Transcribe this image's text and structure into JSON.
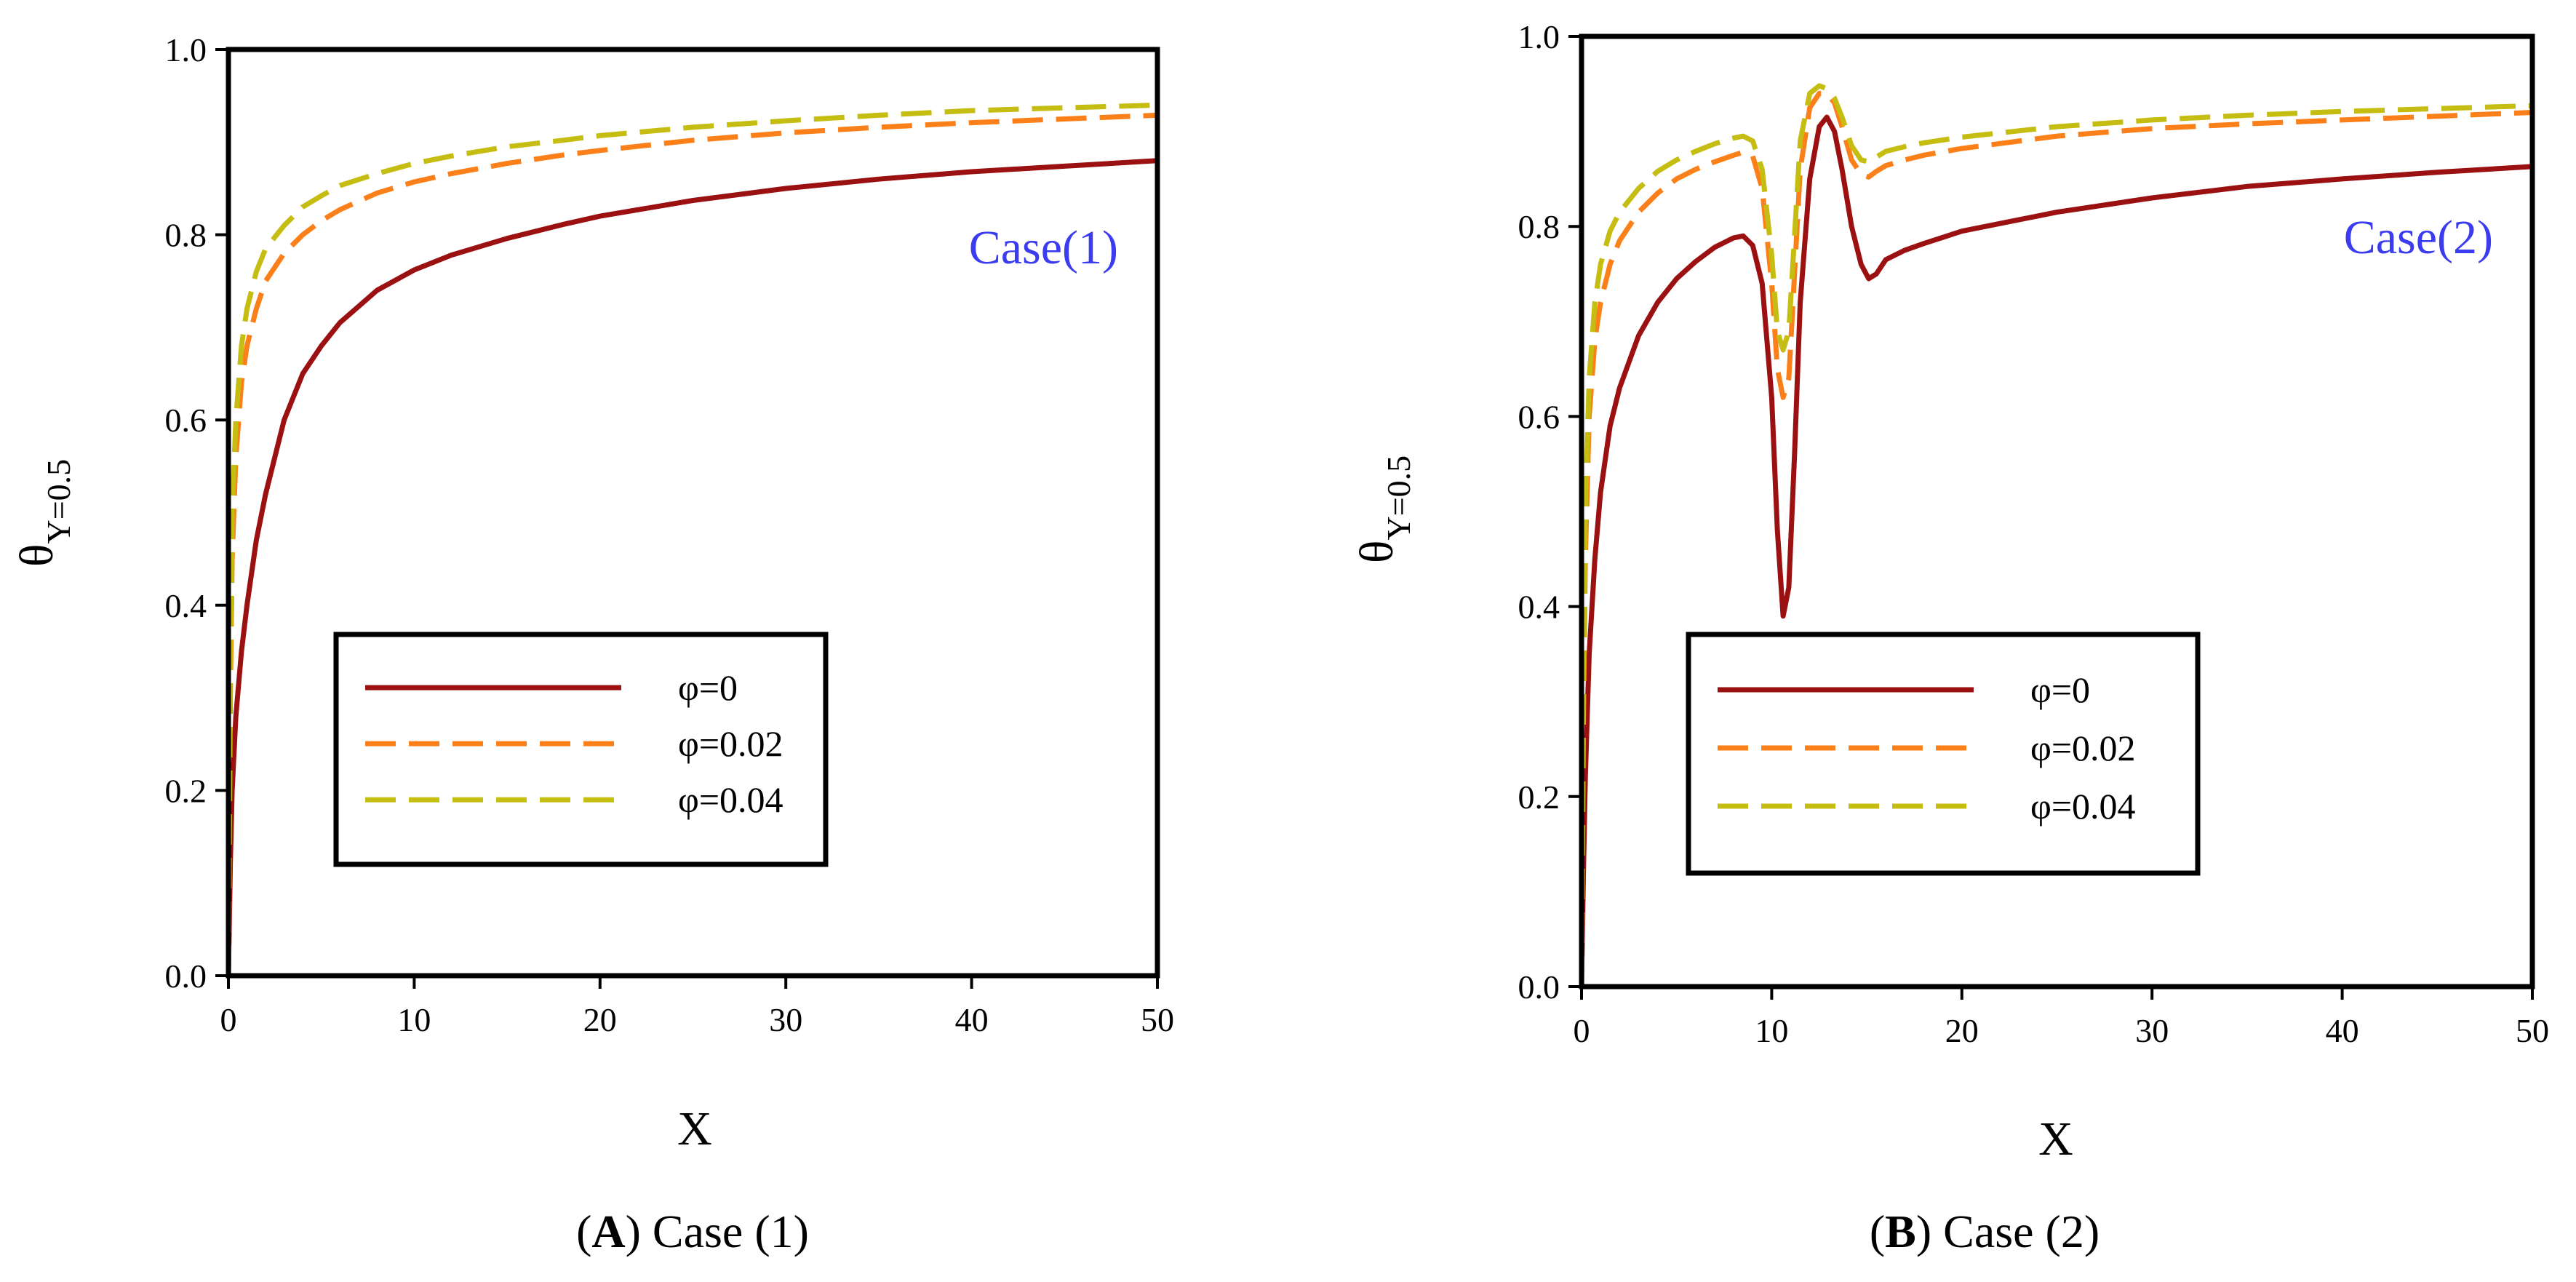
{
  "figure": {
    "colors": {
      "phi0": "#9b1111",
      "phi002": "#fb8019",
      "phi004": "#c6bd12",
      "case_label": "#3b3bf0"
    }
  },
  "chart_data": [
    {
      "type": "line",
      "panel": "A",
      "caption": {
        "letter": "A",
        "text": "Case (1)"
      },
      "annotation": "Case(1)",
      "xlabel": "X",
      "ylabel_main": "θ",
      "ylabel_sub": "Y=0.5",
      "xlim": [
        0,
        50
      ],
      "ylim": [
        0,
        1.0
      ],
      "xticks": [
        "0",
        "10",
        "20",
        "30",
        "40",
        "50"
      ],
      "yticks": [
        "0.0",
        "0.2",
        "0.4",
        "0.6",
        "0.8",
        "1.0"
      ],
      "legend": {
        "position": "center-left",
        "entries": [
          "φ=0",
          "φ=0.02",
          "φ=0.04"
        ]
      },
      "series": [
        {
          "name": "φ=0",
          "color": "#9b1111",
          "dash": "solid",
          "x": [
            0,
            0.1,
            0.2,
            0.4,
            0.7,
            1,
            1.5,
            2,
            3,
            4,
            5,
            6,
            8,
            10,
            12,
            15,
            18,
            20,
            25,
            30,
            35,
            40,
            45,
            50
          ],
          "y": [
            0,
            0.12,
            0.2,
            0.28,
            0.35,
            0.4,
            0.47,
            0.52,
            0.6,
            0.65,
            0.68,
            0.705,
            0.74,
            0.762,
            0.778,
            0.796,
            0.811,
            0.82,
            0.837,
            0.85,
            0.86,
            0.868,
            0.874,
            0.88
          ]
        },
        {
          "name": "φ=0.02",
          "color": "#fb8019",
          "dash": "dashed",
          "x": [
            0,
            0.1,
            0.2,
            0.4,
            0.7,
            1,
            1.5,
            2,
            3,
            4,
            5,
            6,
            8,
            10,
            12,
            15,
            18,
            20,
            25,
            30,
            35,
            40,
            45,
            50
          ],
          "y": [
            0,
            0.3,
            0.45,
            0.56,
            0.64,
            0.68,
            0.72,
            0.75,
            0.78,
            0.8,
            0.815,
            0.827,
            0.845,
            0.857,
            0.866,
            0.877,
            0.886,
            0.891,
            0.902,
            0.91,
            0.916,
            0.921,
            0.925,
            0.929
          ]
        },
        {
          "name": "φ=0.04",
          "color": "#c6bd12",
          "dash": "dashed",
          "x": [
            0,
            0.1,
            0.2,
            0.4,
            0.7,
            1,
            1.5,
            2,
            3,
            4,
            5,
            6,
            8,
            10,
            12,
            15,
            18,
            20,
            25,
            30,
            35,
            40,
            45,
            50
          ],
          "y": [
            0,
            0.35,
            0.5,
            0.6,
            0.68,
            0.72,
            0.76,
            0.785,
            0.81,
            0.83,
            0.842,
            0.853,
            0.866,
            0.877,
            0.885,
            0.895,
            0.902,
            0.907,
            0.916,
            0.923,
            0.929,
            0.934,
            0.937,
            0.94
          ]
        }
      ]
    },
    {
      "type": "line",
      "panel": "B",
      "caption": {
        "letter": "B",
        "text": "Case (2)"
      },
      "annotation": "Case(2)",
      "xlabel": "X",
      "ylabel_main": "θ",
      "ylabel_sub": "Y=0.5",
      "xlim": [
        0,
        50
      ],
      "ylim": [
        0,
        1.0
      ],
      "xticks": [
        "0",
        "10",
        "20",
        "30",
        "40",
        "50"
      ],
      "yticks": [
        "0.0",
        "0.2",
        "0.4",
        "0.6",
        "0.8",
        "1.0"
      ],
      "legend": {
        "position": "center-left",
        "entries": [
          "φ=0",
          "φ=0.02",
          "φ=0.04"
        ]
      },
      "series": [
        {
          "name": "φ=0",
          "color": "#9b1111",
          "dash": "solid",
          "x": [
            0,
            0.1,
            0.2,
            0.4,
            0.7,
            1,
            1.5,
            2,
            3,
            4,
            5,
            6,
            7,
            8,
            8.5,
            9,
            9.5,
            10,
            10.3,
            10.6,
            10.9,
            11.2,
            11.5,
            12,
            12.5,
            12.9,
            13.3,
            13.7,
            14.2,
            14.7,
            15.1,
            15.5,
            16,
            17,
            18,
            20,
            25,
            30,
            35,
            40,
            45,
            50
          ],
          "y": [
            0,
            0.12,
            0.22,
            0.35,
            0.45,
            0.52,
            0.59,
            0.63,
            0.685,
            0.72,
            0.745,
            0.763,
            0.778,
            0.788,
            0.79,
            0.78,
            0.74,
            0.62,
            0.48,
            0.39,
            0.42,
            0.56,
            0.72,
            0.85,
            0.905,
            0.915,
            0.9,
            0.86,
            0.8,
            0.76,
            0.745,
            0.75,
            0.765,
            0.775,
            0.782,
            0.795,
            0.815,
            0.83,
            0.842,
            0.85,
            0.857,
            0.863
          ]
        },
        {
          "name": "φ=0.02",
          "color": "#fb8019",
          "dash": "dashed",
          "x": [
            0,
            0.1,
            0.2,
            0.4,
            0.7,
            1,
            1.5,
            2,
            3,
            4,
            5,
            6,
            7,
            8,
            8.5,
            9,
            9.5,
            10,
            10.3,
            10.6,
            10.9,
            11.2,
            11.5,
            12,
            12.5,
            12.9,
            13.3,
            13.7,
            14.2,
            14.7,
            15.1,
            15.5,
            16,
            17,
            18,
            20,
            25,
            30,
            35,
            40,
            45,
            50
          ],
          "y": [
            0,
            0.28,
            0.45,
            0.6,
            0.68,
            0.72,
            0.76,
            0.785,
            0.815,
            0.835,
            0.85,
            0.86,
            0.868,
            0.875,
            0.878,
            0.874,
            0.84,
            0.74,
            0.65,
            0.62,
            0.64,
            0.75,
            0.86,
            0.925,
            0.94,
            0.94,
            0.93,
            0.905,
            0.87,
            0.855,
            0.852,
            0.858,
            0.864,
            0.87,
            0.875,
            0.882,
            0.895,
            0.903,
            0.908,
            0.912,
            0.916,
            0.92
          ]
        },
        {
          "name": "φ=0.04",
          "color": "#c6bd12",
          "dash": "dashed",
          "x": [
            0,
            0.1,
            0.2,
            0.4,
            0.7,
            1,
            1.5,
            2,
            3,
            4,
            5,
            6,
            7,
            8,
            8.5,
            9,
            9.5,
            10,
            10.3,
            10.6,
            10.9,
            11.2,
            11.5,
            12,
            12.5,
            12.9,
            13.3,
            13.7,
            14.2,
            14.7,
            15.1,
            15.5,
            16,
            17,
            18,
            20,
            25,
            30,
            35,
            40,
            45,
            50
          ],
          "y": [
            0,
            0.32,
            0.5,
            0.64,
            0.72,
            0.76,
            0.795,
            0.815,
            0.84,
            0.858,
            0.87,
            0.879,
            0.887,
            0.893,
            0.895,
            0.89,
            0.86,
            0.77,
            0.69,
            0.67,
            0.69,
            0.79,
            0.89,
            0.94,
            0.948,
            0.945,
            0.935,
            0.915,
            0.885,
            0.87,
            0.868,
            0.873,
            0.879,
            0.884,
            0.888,
            0.894,
            0.905,
            0.912,
            0.917,
            0.921,
            0.924,
            0.927
          ]
        }
      ]
    }
  ]
}
